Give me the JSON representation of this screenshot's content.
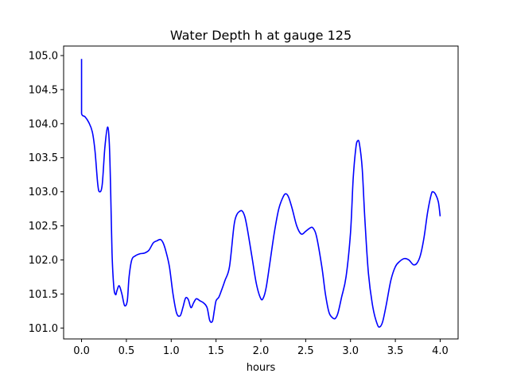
{
  "chart_data": {
    "type": "line",
    "title": "Water Depth h at gauge 125",
    "xlabel": "hours",
    "ylabel": "",
    "xlim": [
      -0.2,
      4.2
    ],
    "ylim": [
      100.84,
      105.14
    ],
    "grid": false,
    "xticks": [
      0.0,
      0.5,
      1.0,
      1.5,
      2.0,
      2.5,
      3.0,
      3.5,
      4.0
    ],
    "xtick_labels": [
      "0.0",
      "0.5",
      "1.0",
      "1.5",
      "2.0",
      "2.5",
      "3.0",
      "3.5",
      "4.0"
    ],
    "yticks": [
      101.0,
      101.5,
      102.0,
      102.5,
      103.0,
      103.5,
      104.0,
      104.5,
      105.0
    ],
    "ytick_labels": [
      "101.0",
      "101.5",
      "102.0",
      "102.5",
      "103.0",
      "103.5",
      "104.0",
      "104.5",
      "105.0"
    ],
    "series": [
      {
        "color": "#0000ff",
        "x": [
          0.0,
          0.0,
          0.0,
          0.04,
          0.08,
          0.12,
          0.15,
          0.18,
          0.2,
          0.23,
          0.26,
          0.29,
          0.31,
          0.325,
          0.34,
          0.36,
          0.38,
          0.395,
          0.42,
          0.45,
          0.48,
          0.51,
          0.53,
          0.56,
          0.6,
          0.65,
          0.7,
          0.75,
          0.8,
          0.84,
          0.88,
          0.91,
          0.94,
          0.98,
          1.02,
          1.06,
          1.1,
          1.13,
          1.16,
          1.19,
          1.22,
          1.25,
          1.28,
          1.32,
          1.36,
          1.4,
          1.43,
          1.46,
          1.48,
          1.5,
          1.53,
          1.56,
          1.6,
          1.65,
          1.7,
          1.73,
          1.76,
          1.79,
          1.82,
          1.85,
          1.9,
          1.95,
          2.0,
          2.03,
          2.06,
          2.1,
          2.15,
          2.2,
          2.25,
          2.28,
          2.31,
          2.35,
          2.4,
          2.45,
          2.5,
          2.55,
          2.58,
          2.62,
          2.68,
          2.72,
          2.76,
          2.8,
          2.83,
          2.86,
          2.9,
          2.95,
          3.0,
          3.03,
          3.06,
          3.08,
          3.1,
          3.13,
          3.16,
          3.2,
          3.25,
          3.3,
          3.33,
          3.36,
          3.4,
          3.45,
          3.5,
          3.55,
          3.6,
          3.65,
          3.7,
          3.74,
          3.78,
          3.82,
          3.86,
          3.9,
          3.92,
          3.95,
          3.98,
          4.0
        ],
        "y": [
          104.95,
          104.4,
          104.15,
          104.1,
          104.02,
          103.88,
          103.6,
          103.12,
          103.0,
          103.1,
          103.65,
          103.95,
          103.7,
          103.0,
          102.1,
          101.6,
          101.49,
          101.55,
          101.62,
          101.5,
          101.33,
          101.4,
          101.75,
          102.0,
          102.06,
          102.09,
          102.1,
          102.14,
          102.25,
          102.28,
          102.3,
          102.25,
          102.13,
          101.9,
          101.5,
          101.22,
          101.18,
          101.3,
          101.44,
          101.42,
          101.3,
          101.37,
          101.43,
          101.4,
          101.37,
          101.3,
          101.11,
          101.1,
          101.25,
          101.4,
          101.45,
          101.55,
          101.7,
          101.9,
          102.5,
          102.66,
          102.71,
          102.72,
          102.64,
          102.45,
          102.05,
          101.65,
          101.43,
          101.45,
          101.6,
          101.95,
          102.4,
          102.75,
          102.93,
          102.97,
          102.92,
          102.75,
          102.5,
          102.38,
          102.42,
          102.47,
          102.47,
          102.35,
          101.9,
          101.5,
          101.23,
          101.15,
          101.14,
          101.22,
          101.45,
          101.75,
          102.4,
          103.2,
          103.65,
          103.75,
          103.7,
          103.35,
          102.6,
          101.8,
          101.3,
          101.05,
          101.02,
          101.1,
          101.35,
          101.7,
          101.9,
          101.98,
          102.02,
          102.0,
          101.93,
          101.95,
          102.07,
          102.33,
          102.7,
          102.96,
          103.0,
          102.96,
          102.85,
          102.64
        ]
      }
    ]
  }
}
